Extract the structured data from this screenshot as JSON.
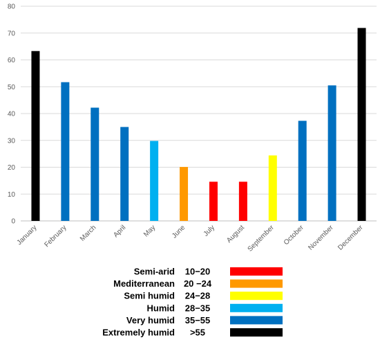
{
  "chart_data": {
    "type": "bar",
    "title": "",
    "xlabel": "",
    "ylabel": "",
    "ylim": [
      0,
      80
    ],
    "yticks": [
      0,
      10,
      20,
      30,
      40,
      50,
      60,
      70,
      80
    ],
    "grid": true,
    "categories": [
      "January",
      "February",
      "March",
      "April",
      "May",
      "June",
      "July",
      "August",
      "September",
      "October",
      "November",
      "December"
    ],
    "values": [
      63.3,
      51.7,
      42.2,
      35.0,
      29.8,
      20.1,
      14.6,
      14.6,
      24.4,
      37.3,
      50.5,
      71.9
    ],
    "bar_colors": [
      "#000000",
      "#0070c0",
      "#0070c0",
      "#0070c0",
      "#00b0f0",
      "#ff9900",
      "#ff0000",
      "#ff0000",
      "#ffff00",
      "#0070c0",
      "#0070c0",
      "#000000"
    ],
    "legend": [
      {
        "label": "Semi-arid",
        "range": "10−20",
        "color": "#ff0000"
      },
      {
        "label": "Mediterranean",
        "range": "20 −24",
        "color": "#ff9900"
      },
      {
        "label": "Semi humid",
        "range": "24−28",
        "color": "#ffff00"
      },
      {
        "label": "Humid",
        "range": "28−35",
        "color": "#00b0f0"
      },
      {
        "label": "Very humid",
        "range": "35−55",
        "color": "#0070c0"
      },
      {
        "label": "Extremely humid",
        "range": ">55",
        "color": "#000000"
      }
    ],
    "legend_position": "bottom"
  }
}
